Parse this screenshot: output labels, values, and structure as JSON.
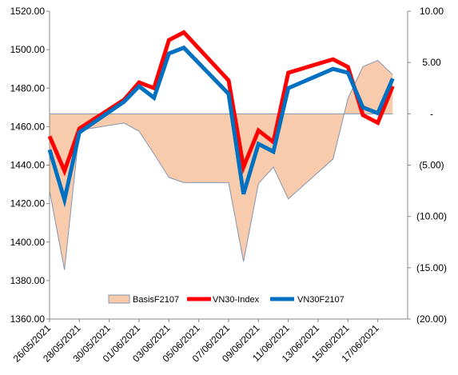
{
  "chart_data": {
    "type": "line",
    "title": "",
    "x": [
      "26/05/2021",
      "27/05/2021",
      "28/05/2021",
      "31/05/2021",
      "01/06/2021",
      "02/06/2021",
      "03/06/2021",
      "04/06/2021",
      "07/06/2021",
      "08/06/2021",
      "09/06/2021",
      "10/06/2021",
      "11/06/2021",
      "14/06/2021",
      "15/06/2021",
      "16/06/2021",
      "17/06/2021",
      "18/06/2021"
    ],
    "x_tick_labels": [
      "26/05/2021",
      "28/05/2021",
      "30/05/2021",
      "01/06/2021",
      "03/06/2021",
      "05/06/2021",
      "07/06/2021",
      "09/06/2021",
      "11/06/2021",
      "13/06/2021",
      "15/06/2021",
      "17/06/2021"
    ],
    "x_range": [
      "26/05/2021",
      "19/06/2021"
    ],
    "y_left": {
      "ticks": [
        "1520.00",
        "1500.00",
        "1480.00",
        "1460.00",
        "1440.00",
        "1420.00",
        "1400.00",
        "1380.00",
        "1360.00"
      ],
      "range": [
        1360,
        1520
      ]
    },
    "y_right": {
      "ticks": [
        "10.00",
        "5.00",
        "-",
        "(5.00)",
        "(10.00)",
        "(15.00)",
        "(20.00)"
      ],
      "range": [
        -20,
        10
      ]
    },
    "series": [
      {
        "name": "BasisF2107",
        "type": "area",
        "axis": "right",
        "color": "#f8cbad",
        "line_color": "#8496b0",
        "x": [
          "26/05/2021",
          "27/05/2021",
          "28/05/2021",
          "31/05/2021",
          "01/06/2021",
          "02/06/2021",
          "03/06/2021",
          "04/06/2021",
          "07/06/2021",
          "08/06/2021",
          "09/06/2021",
          "10/06/2021",
          "11/06/2021",
          "14/06/2021",
          "15/06/2021",
          "16/06/2021",
          "17/06/2021",
          "18/06/2021"
        ],
        "values": [
          -7.5,
          -15.2,
          -1.6,
          -0.9,
          -1.7,
          -3.9,
          -6.2,
          -6.7,
          -6.7,
          -14.4,
          -6.8,
          -5.2,
          -8.3,
          -4.4,
          1.5,
          4.6,
          5.2,
          3.8
        ]
      },
      {
        "name": "VN30-Index",
        "type": "line",
        "axis": "left",
        "color": "#ff0000",
        "x": [
          "26/05/2021",
          "27/05/2021",
          "28/05/2021",
          "31/05/2021",
          "01/06/2021",
          "02/06/2021",
          "03/06/2021",
          "04/06/2021",
          "07/06/2021",
          "08/06/2021",
          "09/06/2021",
          "10/06/2021",
          "11/06/2021",
          "14/06/2021",
          "15/06/2021",
          "16/06/2021",
          "17/06/2021",
          "18/06/2021"
        ],
        "values": [
          1455,
          1437,
          1459,
          1474,
          1483,
          1480,
          1505,
          1509,
          1484,
          1439,
          1458,
          1452,
          1488,
          1495,
          1491,
          1466,
          1462,
          1481
        ]
      },
      {
        "name": "VN30F2107",
        "type": "line",
        "axis": "left",
        "color": "#0070c0",
        "x": [
          "26/05/2021",
          "27/05/2021",
          "28/05/2021",
          "31/05/2021",
          "01/06/2021",
          "02/06/2021",
          "03/06/2021",
          "04/06/2021",
          "07/06/2021",
          "08/06/2021",
          "09/06/2021",
          "10/06/2021",
          "11/06/2021",
          "14/06/2021",
          "15/06/2021",
          "16/06/2021",
          "17/06/2021",
          "18/06/2021"
        ],
        "values": [
          1448,
          1422,
          1457,
          1473,
          1481,
          1475,
          1498,
          1501,
          1477,
          1425,
          1451,
          1447,
          1480,
          1490,
          1488,
          1470,
          1467,
          1485
        ]
      }
    ],
    "legend": {
      "placement": "bottom-center",
      "entries": [
        "BasisF2107",
        "VN30-Index",
        "VN30F2107"
      ]
    },
    "grid": false
  }
}
